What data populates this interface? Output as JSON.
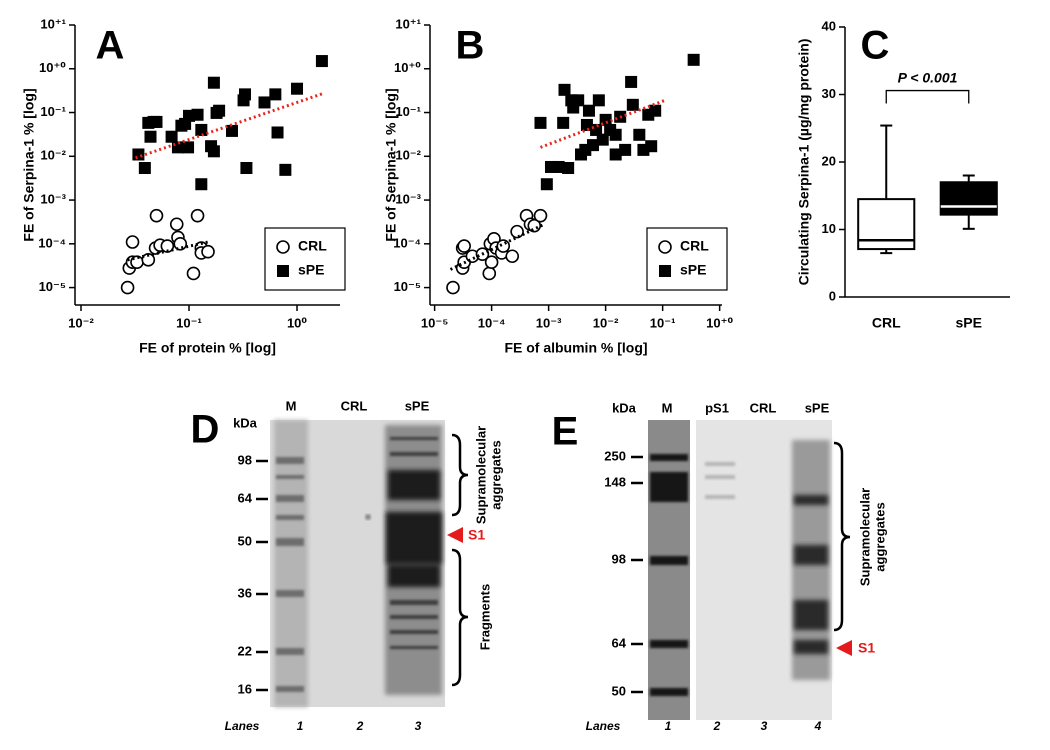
{
  "chart_data": [
    {
      "type": "scatter",
      "panel": "A",
      "xlabel": "FE of protein % [log]",
      "ylabel": "FE of Serpina-1 % [log]",
      "log_x": true,
      "log_y": true,
      "xlim": [
        0.0088,
        2.5
      ],
      "ylim": [
        4e-06,
        10
      ],
      "xticks": [
        {
          "value": 0.01,
          "label": "10⁻²"
        },
        {
          "value": 0.1,
          "label": "10⁻¹"
        },
        {
          "value": 1,
          "label": "10⁰"
        }
      ],
      "yticks": [
        {
          "value": 1e-05,
          "label": "10⁻⁵"
        },
        {
          "value": 0.0001,
          "label": "10⁻⁴"
        },
        {
          "value": 0.001,
          "label": "10⁻³"
        },
        {
          "value": 0.01,
          "label": "10⁻²"
        },
        {
          "value": 0.1,
          "label": "10⁻¹"
        },
        {
          "value": 1,
          "label": "10⁺⁰"
        },
        {
          "value": 10,
          "label": "10⁺¹"
        }
      ],
      "legend": "lower right",
      "series": [
        {
          "name": "CRL",
          "marker": "open-circle",
          "color": "#000000",
          "x": [
            0.027,
            0.028,
            0.03,
            0.03,
            0.033,
            0.042,
            0.049,
            0.05,
            0.054,
            0.063,
            0.077,
            0.079,
            0.083,
            0.11,
            0.12,
            0.13,
            0.13,
            0.15
          ],
          "values": [
            1e-05,
            2.8e-05,
            3.8e-05,
            0.00011,
            3.8e-05,
            4.3e-05,
            8e-05,
            0.00044,
            9.3e-05,
            8.9e-05,
            0.00028,
            0.00014,
            0.0001,
            2.1e-05,
            0.00044,
            8e-05,
            6.2e-05,
            6.6e-05
          ]
        },
        {
          "name": "sPE",
          "marker": "filled-square",
          "color": "#000000",
          "x": [
            0.034,
            0.039,
            0.042,
            0.044,
            0.047,
            0.05,
            0.069,
            0.079,
            0.085,
            0.092,
            0.098,
            0.1,
            0.12,
            0.13,
            0.13,
            0.16,
            0.17,
            0.17,
            0.18,
            0.19,
            0.25,
            0.32,
            0.33,
            0.34,
            0.5,
            0.63,
            0.66,
            0.78,
            1.0,
            1.7
          ],
          "values": [
            0.011,
            0.0054,
            0.058,
            0.028,
            0.061,
            0.061,
            0.028,
            0.016,
            0.05,
            0.055,
            0.016,
            0.084,
            0.089,
            0.0023,
            0.04,
            0.017,
            0.013,
            0.48,
            0.098,
            0.11,
            0.038,
            0.19,
            0.26,
            0.0054,
            0.17,
            0.26,
            0.035,
            0.0049,
            0.35,
            1.5
          ]
        }
      ],
      "fits": [
        {
          "color": "#e8261b",
          "x": [
            0.032,
            1.8
          ],
          "values": [
            0.0092,
            0.28
          ]
        },
        {
          "color": "#000000",
          "x": [
            0.027,
            0.15
          ],
          "values": [
            4.3e-05,
            0.00011
          ]
        }
      ]
    },
    {
      "type": "scatter",
      "panel": "B",
      "xlabel": "FE of albumin % [log]",
      "ylabel": "FE of Serpina-1 % [log]",
      "log_x": true,
      "log_y": true,
      "xlim": [
        8.3e-06,
        1.1
      ],
      "ylim": [
        4e-06,
        10
      ],
      "xticks": [
        {
          "value": 1e-05,
          "label": "10⁻⁵"
        },
        {
          "value": 0.0001,
          "label": "10⁻⁴"
        },
        {
          "value": 0.001,
          "label": "10⁻³"
        },
        {
          "value": 0.01,
          "label": "10⁻²"
        },
        {
          "value": 0.1,
          "label": "10⁻¹"
        },
        {
          "value": 1,
          "label": "10⁺⁰"
        }
      ],
      "yticks": [
        {
          "value": 1e-05,
          "label": "10⁻⁵"
        },
        {
          "value": 0.0001,
          "label": "10⁻⁴"
        },
        {
          "value": 0.001,
          "label": "10⁻³"
        },
        {
          "value": 0.01,
          "label": "10⁻²"
        },
        {
          "value": 0.1,
          "label": "10⁻¹"
        },
        {
          "value": 1,
          "label": "10⁺⁰"
        },
        {
          "value": 10,
          "label": "10⁺¹"
        }
      ],
      "legend": "lower right",
      "series": [
        {
          "name": "CRL",
          "marker": "open-circle",
          "color": "#000000",
          "x": [
            2.1e-05,
            3.1e-05,
            3.3e-05,
            3.1e-05,
            3.3e-05,
            4.6e-05,
            6.9e-05,
            9.1e-05,
            0.0001,
            9.5e-05,
            0.00011,
            0.00012,
            0.00015,
            0.00016,
            0.00023,
            0.00028,
            0.00041,
            0.00048,
            0.00056,
            0.00072
          ],
          "values": [
            1e-05,
            2.8e-05,
            3.8e-05,
            8e-05,
            8.9e-05,
            5.2e-05,
            5.8e-05,
            2.1e-05,
            3.8e-05,
            0.0001,
            0.00013,
            8e-05,
            6.2e-05,
            8.9e-05,
            5.2e-05,
            0.00019,
            0.00044,
            0.00028,
            0.00026,
            0.00044
          ]
        },
        {
          "name": "sPE",
          "marker": "filled-square",
          "color": "#000000",
          "x": [
            0.00072,
            0.00093,
            0.0011,
            0.0015,
            0.0018,
            0.0019,
            0.0022,
            0.0025,
            0.0027,
            0.0033,
            0.0037,
            0.0044,
            0.0047,
            0.0051,
            0.006,
            0.0068,
            0.0076,
            0.0089,
            0.01,
            0.012,
            0.015,
            0.015,
            0.018,
            0.022,
            0.028,
            0.03,
            0.039,
            0.046,
            0.056,
            0.063,
            0.074,
            0.35
          ],
          "values": [
            0.058,
            0.0023,
            0.0057,
            0.0057,
            0.058,
            0.33,
            0.0054,
            0.19,
            0.13,
            0.19,
            0.011,
            0.014,
            0.052,
            0.11,
            0.018,
            0.04,
            0.19,
            0.024,
            0.068,
            0.04,
            0.031,
            0.011,
            0.08,
            0.014,
            0.5,
            0.15,
            0.031,
            0.014,
            0.089,
            0.017,
            0.11,
            1.6
          ]
        }
      ],
      "fits": [
        {
          "color": "#e8261b",
          "x": [
            0.00072,
            0.11
          ],
          "values": [
            0.016,
            0.19
          ]
        },
        {
          "color": "#000000",
          "x": [
            1.9e-05,
            0.00079
          ],
          "values": [
            2.6e-05,
            0.00027
          ]
        }
      ]
    },
    {
      "type": "box",
      "panel": "C",
      "ylabel": "Circulating Serpina-1 (µg/mg protein)",
      "categories": [
        "CRL",
        "sPE"
      ],
      "ylim": [
        0,
        40
      ],
      "yticks": [
        0,
        10,
        20,
        30,
        40
      ],
      "boxes": [
        {
          "min": 6.5,
          "q1": 7.1,
          "median": 8.4,
          "q3": 14.5,
          "max": 25.4,
          "color": "#ffffff"
        },
        {
          "min": 10.1,
          "q1": 12.2,
          "median": 13.4,
          "q3": 17,
          "max": 18,
          "color": "#000000"
        }
      ],
      "annotation": "P < 0.001"
    }
  ],
  "blots": [
    {
      "panel": "D",
      "unit_label": "kDa",
      "lanes": [
        "M",
        "CRL",
        "sPE"
      ],
      "markers": [
        98,
        64,
        50,
        36,
        22,
        16
      ],
      "brackets": [
        {
          "label_lines": [
            "Supramolecular",
            "aggregates"
          ]
        },
        {
          "label_lines": [
            "Fragments"
          ]
        }
      ],
      "arrow_label": "S1",
      "lane_numbers_label": "Lanes",
      "lane_numbers": [
        1,
        2,
        3
      ]
    },
    {
      "panel": "E",
      "unit_label": "kDa",
      "lanes": [
        "M",
        "pS1",
        "CRL",
        "sPE"
      ],
      "markers": [
        250,
        148,
        98,
        64,
        50
      ],
      "brackets": [
        {
          "label_lines": [
            "Supramolecular",
            "aggregates"
          ]
        }
      ],
      "arrow_label": "S1",
      "lane_numbers_label": "Lanes",
      "lane_numbers": [
        1,
        2,
        3,
        4
      ]
    }
  ]
}
